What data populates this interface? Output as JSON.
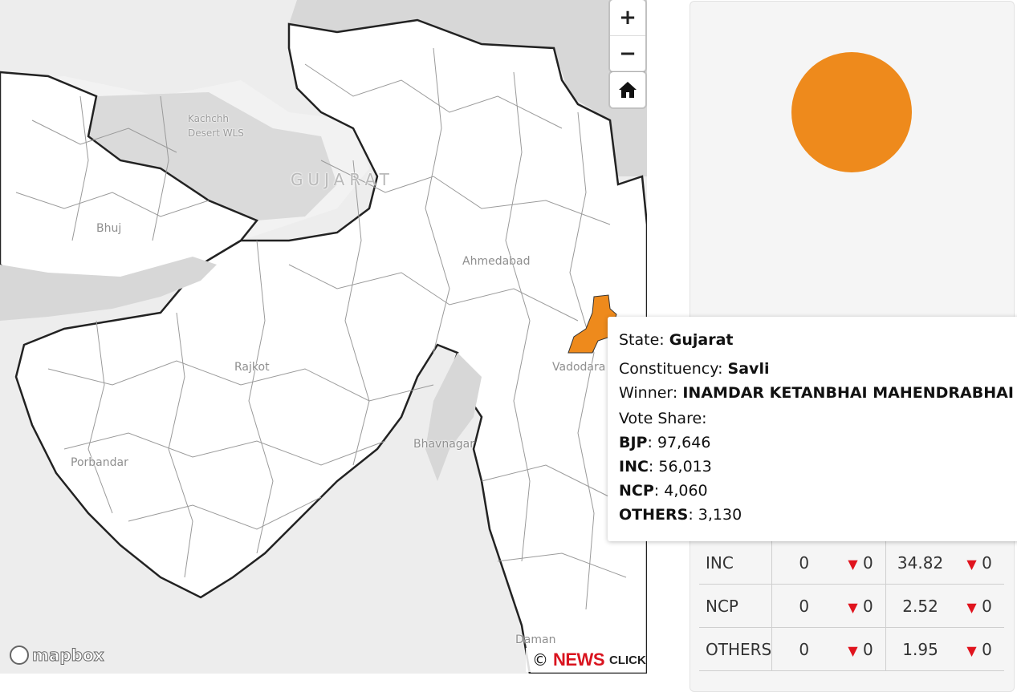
{
  "map": {
    "labels": {
      "kachchh": "Kachchh",
      "desert": "Desert WLS",
      "state": "GUJARAT",
      "bhuj": "Bhuj",
      "ahmedabad": "Ahmedabad",
      "rajkot": "Rajkot",
      "vadodara": "Vadodara",
      "bhavnagar": "Bhavnagar",
      "porbandar": "Porbandar",
      "daman": "Daman"
    },
    "controls": {
      "zoom_in": "+",
      "zoom_out": "−",
      "home_icon": "home-icon"
    },
    "logo": "mapbox",
    "attribution": {
      "copyright": "©",
      "brand_main": "NEWS",
      "brand_sub": "CLICK"
    },
    "highlight_color": "#ee8a1c"
  },
  "pie": {
    "winner_color": "#ee8a1c"
  },
  "tooltip": {
    "state_label": "State:",
    "state_value": "Gujarat",
    "constituency_label": "Constituency:",
    "constituency_value": "Savli",
    "winner_label": "Winner:",
    "winner_value": "INAMDAR KETANBHAI MAHENDRABHAI",
    "vote_share_label": "Vote Share:",
    "votes": [
      {
        "party": "BJP",
        "value": "97,646"
      },
      {
        "party": "INC",
        "value": "56,013"
      },
      {
        "party": "NCP",
        "value": "4,060"
      },
      {
        "party": "OTHERS",
        "value": "3,130"
      }
    ]
  },
  "results": [
    {
      "party": "INC",
      "seats": "0",
      "seats_change": "0",
      "share": "34.82",
      "share_change": "0"
    },
    {
      "party": "NCP",
      "seats": "0",
      "seats_change": "0",
      "share": "2.52",
      "share_change": "0"
    },
    {
      "party": "OTHERS",
      "seats": "0",
      "seats_change": "0",
      "share": "1.95",
      "share_change": "0"
    }
  ],
  "colors": {
    "down_arrow": "#e0141e",
    "map_land": "#ffffff",
    "map_water": "#d7d7d7"
  }
}
